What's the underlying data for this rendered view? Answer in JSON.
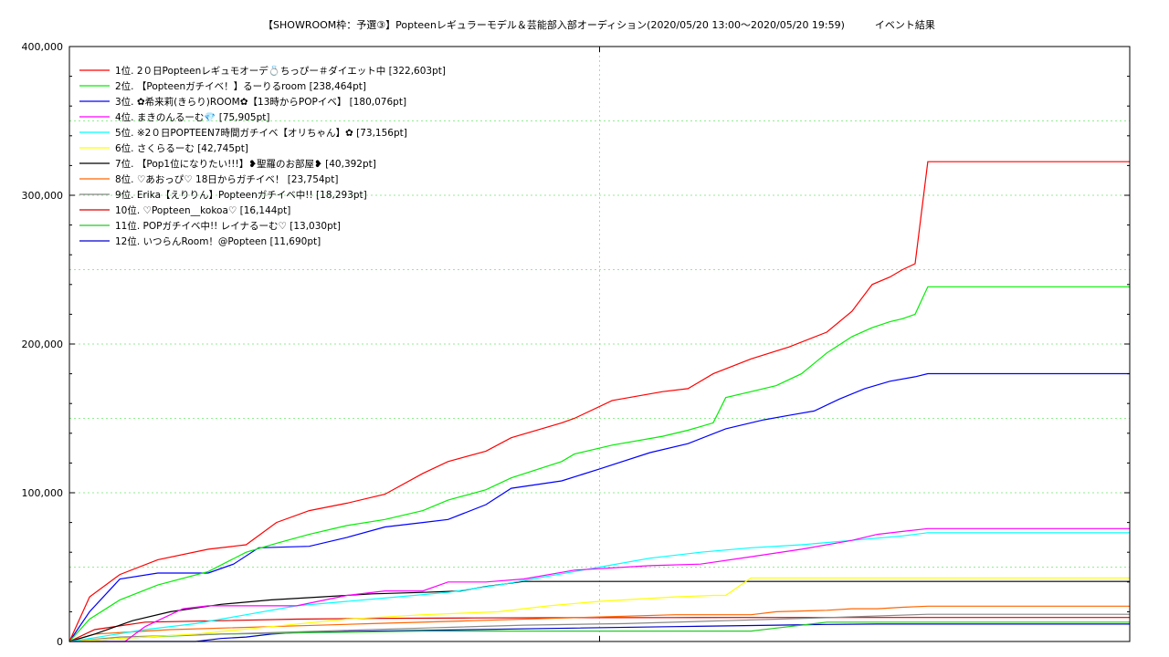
{
  "chart_data": {
    "type": "line",
    "title": "【SHOWROOM枠：予選③】Popteenレギュラーモデル＆芸能部入部オーディション(2020/05/20 13:00〜2020/05/20 19:59)　　　イベント結果",
    "xlabel": "",
    "ylabel": "",
    "ylim": [
      0,
      400000
    ],
    "yticks": [
      0,
      100000,
      200000,
      300000,
      400000
    ],
    "ytick_labels": [
      "0",
      "100,000",
      "200,000",
      "300,000",
      "400,000"
    ],
    "x_unit": "minutes since 13:00",
    "xlim": [
      0,
      420
    ],
    "x_gridlines": [
      210
    ],
    "grid": true,
    "legend_position": "top-left",
    "series": [
      {
        "name": "1位. 2０日Popteenレギュモオーデ💍ちっぴー＃ダイエット中 [322,603pt]",
        "color": "#ff0000",
        "x": [
          0,
          8,
          20,
          35,
          55,
          70,
          82,
          95,
          110,
          125,
          140,
          150,
          165,
          175,
          195,
          200,
          215,
          235,
          245,
          255,
          270,
          285,
          300,
          310,
          318,
          325,
          330,
          335,
          340,
          380,
          420
        ],
        "y": [
          0,
          30000,
          45000,
          55000,
          62000,
          65000,
          80000,
          88000,
          93000,
          99000,
          113000,
          121000,
          128000,
          137000,
          147000,
          150000,
          162000,
          168000,
          170000,
          180000,
          190000,
          198000,
          208000,
          222000,
          240000,
          245000,
          250000,
          254000,
          322603,
          322603,
          322603
        ]
      },
      {
        "name": "2位. 【Popteenガチイベ！】るーりるroom [238,464pt]",
        "color": "#00ee00",
        "x": [
          0,
          8,
          20,
          35,
          55,
          70,
          82,
          95,
          110,
          125,
          140,
          150,
          165,
          175,
          195,
          200,
          215,
          235,
          245,
          255,
          260,
          270,
          280,
          290,
          300,
          310,
          318,
          325,
          330,
          335,
          340,
          380,
          420
        ],
        "y": [
          0,
          15000,
          28000,
          38000,
          47000,
          60000,
          66000,
          72000,
          78000,
          82000,
          88000,
          95000,
          102000,
          110000,
          121000,
          126000,
          132000,
          138000,
          142000,
          147000,
          164000,
          168000,
          172000,
          180000,
          194000,
          205000,
          211000,
          215000,
          217000,
          220000,
          238464,
          238464,
          238464
        ]
      },
      {
        "name": "3位. ✿希来莉(きらり)ROOM✿【13時からPOPイベ】 [180,076pt]",
        "color": "#0000ff",
        "x": [
          0,
          8,
          20,
          35,
          55,
          65,
          75,
          95,
          110,
          125,
          140,
          150,
          165,
          175,
          195,
          210,
          230,
          245,
          260,
          275,
          285,
          295,
          305,
          315,
          325,
          335,
          340,
          380,
          420
        ],
        "y": [
          0,
          20000,
          42000,
          46000,
          46000,
          52000,
          63000,
          64000,
          70000,
          77000,
          80000,
          82000,
          92000,
          103000,
          108000,
          116000,
          127000,
          133000,
          143000,
          149000,
          152000,
          155000,
          163000,
          170000,
          175000,
          178000,
          180076,
          180076,
          180076
        ]
      },
      {
        "name": "4位. まきのんるーむ💎 [75,905pt]",
        "color": "#ff00ff",
        "x": [
          0,
          20,
          22,
          30,
          45,
          55,
          70,
          90,
          110,
          125,
          140,
          150,
          165,
          180,
          200,
          230,
          250,
          270,
          290,
          310,
          320,
          330,
          340,
          380,
          420
        ],
        "y": [
          0,
          0,
          0,
          10000,
          22000,
          24000,
          24000,
          24000,
          31000,
          34000,
          34000,
          40000,
          40000,
          42000,
          48000,
          51000,
          52000,
          57000,
          62000,
          68000,
          72000,
          74000,
          75905,
          75905,
          75905
        ]
      },
      {
        "name": "5位. ※2０日POPTEEN7時間ガチイベ【オリちゃん】✿ [73,156pt]",
        "color": "#00ffff",
        "x": [
          0,
          8,
          30,
          50,
          70,
          90,
          110,
          130,
          150,
          170,
          190,
          210,
          230,
          250,
          270,
          290,
          310,
          330,
          340,
          380,
          420
        ],
        "y": [
          0,
          2000,
          8000,
          12000,
          18000,
          24000,
          27000,
          30000,
          33000,
          38000,
          44000,
          50000,
          56000,
          60000,
          63000,
          65000,
          68000,
          71000,
          73156,
          73156,
          73156
        ]
      },
      {
        "name": "6位. さくらるーむ [42,745pt]",
        "color": "#ffff00",
        "x": [
          0,
          20,
          50,
          80,
          110,
          140,
          170,
          190,
          210,
          240,
          255,
          260,
          270,
          300,
          340,
          380,
          420
        ],
        "y": [
          0,
          2000,
          5000,
          10000,
          15000,
          18000,
          20000,
          24000,
          27000,
          30000,
          31000,
          31000,
          42745,
          42745,
          42745,
          42745,
          42745
        ]
      },
      {
        "name": "7位. 【Pop1位になりたい!!!】❥聖羅のお部屋❥ [40,392pt]",
        "color": "#000000",
        "x": [
          0,
          10,
          25,
          40,
          60,
          80,
          100,
          120,
          140,
          155,
          165,
          180,
          200,
          230,
          270,
          320,
          380,
          420
        ],
        "y": [
          0,
          5000,
          14000,
          20000,
          25000,
          28000,
          30000,
          32000,
          33000,
          34000,
          37000,
          40392,
          40392,
          40392,
          40392,
          40392,
          40392,
          40392
        ]
      },
      {
        "name": "8位. ♡あおっぴ♡ 18日からガチイベ！ [23,754pt]",
        "color": "#ff6600",
        "x": [
          0,
          10,
          40,
          80,
          120,
          160,
          200,
          240,
          270,
          280,
          300,
          310,
          320,
          330,
          340,
          380,
          420
        ],
        "y": [
          0,
          5000,
          8000,
          10000,
          12000,
          14000,
          16000,
          18000,
          18000,
          20000,
          21000,
          22000,
          22000,
          23000,
          23754,
          23754,
          23754
        ]
      },
      {
        "name": "9位. Erika【えりりん】Popteenガチイベ中!! [18,293pt]",
        "color": "#888888",
        "x": [
          0,
          20,
          60,
          100,
          140,
          180,
          220,
          260,
          300,
          340,
          380,
          420
        ],
        "y": [
          0,
          3000,
          5000,
          7000,
          9000,
          11000,
          12000,
          14000,
          16000,
          18293,
          18293,
          18293
        ]
      },
      {
        "name": "10位. ♡Popteen__kokoa♡ [16,144pt]",
        "color": "#dd0000",
        "x": [
          0,
          10,
          30,
          60,
          90,
          120,
          160,
          200,
          240,
          280,
          320,
          340,
          380,
          420
        ],
        "y": [
          0,
          8000,
          13000,
          14000,
          15000,
          15500,
          15800,
          16000,
          16100,
          16144,
          16144,
          16144,
          16144,
          16144
        ]
      },
      {
        "name": "11位. POPガチイベ中!! レイナるーむ♡ [13,030pt]",
        "color": "#22cc22",
        "x": [
          0,
          30,
          60,
          100,
          140,
          180,
          220,
          260,
          270,
          280,
          290,
          300,
          380,
          420
        ],
        "y": [
          0,
          3000,
          5000,
          6000,
          7000,
          7000,
          7000,
          7000,
          7000,
          9000,
          11000,
          13030,
          13030,
          13030
        ]
      },
      {
        "name": "12位. いつらんRoom！@Popteen [11,690pt]",
        "color": "#0000cc",
        "x": [
          0,
          40,
          50,
          60,
          70,
          80,
          90,
          120,
          160,
          200,
          240,
          280,
          300,
          320,
          380,
          420
        ],
        "y": [
          0,
          0,
          0,
          2000,
          3000,
          5000,
          6000,
          7000,
          8000,
          9000,
          10000,
          11000,
          11500,
          11690,
          11690,
          11690
        ]
      }
    ]
  }
}
